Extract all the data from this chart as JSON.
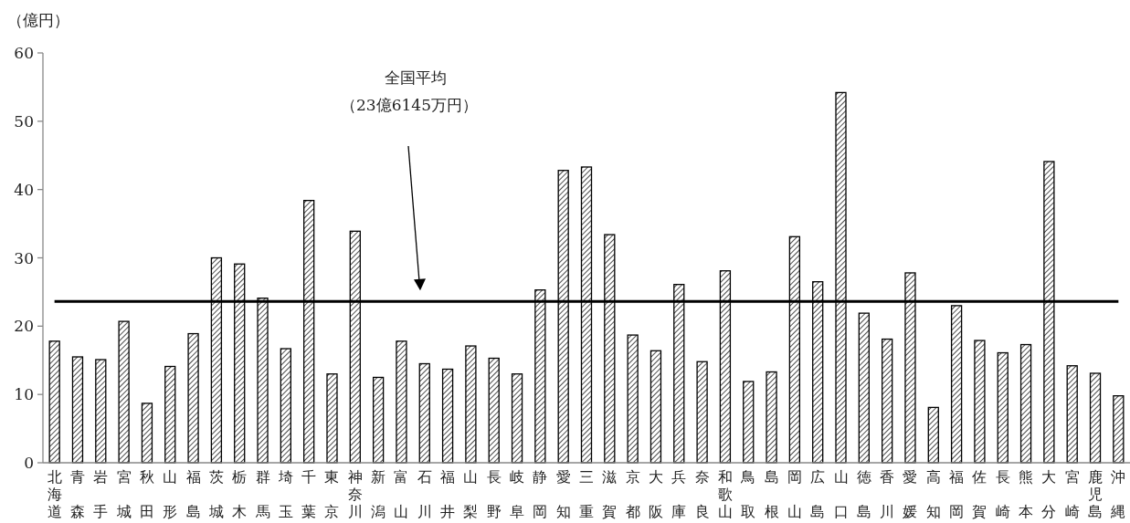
{
  "chart_data": {
    "type": "bar",
    "ylabel": "（億円）",
    "categories": [
      "北海道",
      "青森",
      "岩手",
      "宮城",
      "秋田",
      "山形",
      "福島",
      "茨城",
      "栃木",
      "群馬",
      "埼玉",
      "千葉",
      "東京",
      "神奈川",
      "新潟",
      "富山",
      "石川",
      "福井",
      "山梨",
      "長野",
      "岐阜",
      "静岡",
      "愛知",
      "三重",
      "滋賀",
      "京都",
      "大阪",
      "兵庫",
      "奈良",
      "和歌山",
      "鳥取",
      "島根",
      "岡山",
      "広島",
      "山口",
      "徳島",
      "香川",
      "愛媛",
      "高知",
      "福岡",
      "佐賀",
      "長崎",
      "熊本",
      "大分",
      "宮崎",
      "鹿児島",
      "沖縄"
    ],
    "values": [
      17.8,
      15.5,
      15.1,
      20.7,
      8.7,
      14.1,
      18.9,
      30.0,
      29.1,
      24.1,
      16.7,
      38.4,
      13.0,
      33.9,
      12.5,
      17.8,
      14.5,
      13.7,
      17.1,
      15.3,
      13.0,
      25.3,
      42.8,
      43.3,
      33.4,
      18.7,
      16.4,
      26.1,
      14.8,
      28.1,
      11.9,
      13.3,
      33.1,
      26.5,
      54.2,
      21.9,
      18.1,
      27.8,
      8.1,
      23.0,
      17.9,
      16.1,
      17.3,
      44.1,
      14.2,
      13.1,
      9.8
    ],
    "color": "#000000",
    "ylim": [
      0,
      60
    ],
    "yticks": [
      0,
      10,
      20,
      30,
      40,
      50,
      60
    ],
    "ref_lines": [
      {
        "axis": "y",
        "value": 23.6145,
        "label": "全国平均",
        "color": "#000000"
      }
    ],
    "annotations": [
      "（23億6145万円）"
    ]
  }
}
